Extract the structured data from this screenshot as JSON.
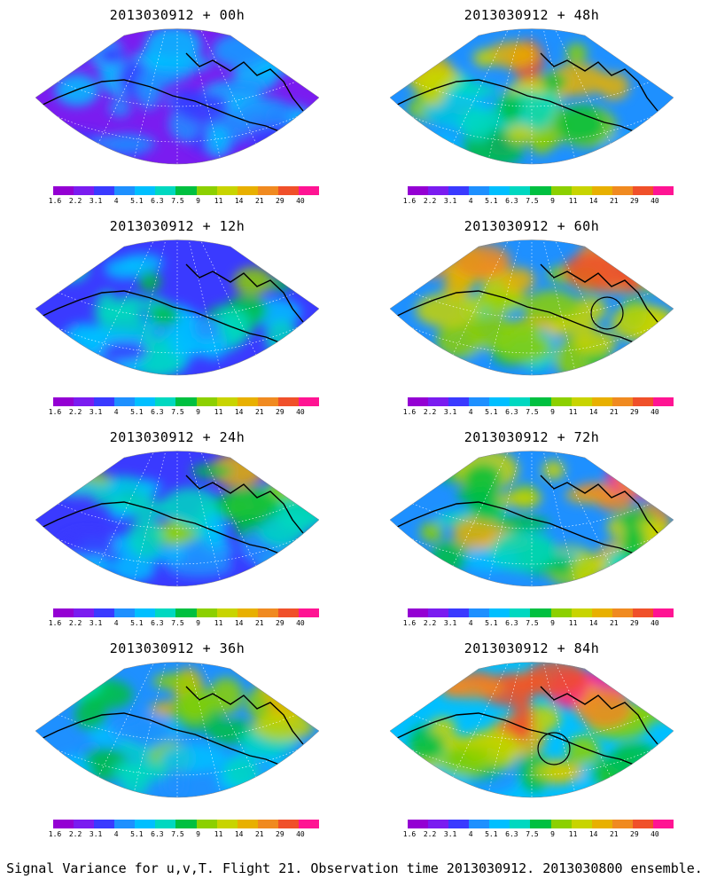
{
  "panels": [
    {
      "title": "2013030912 + 00h",
      "col": 0,
      "row": 0,
      "intensity": 0.35,
      "circle": null
    },
    {
      "title": "2013030912 + 48h",
      "col": 1,
      "row": 0,
      "intensity": 0.75,
      "circle": null
    },
    {
      "title": "2013030912 + 12h",
      "col": 0,
      "row": 1,
      "intensity": 0.5,
      "circle": null
    },
    {
      "title": "2013030912 + 60h",
      "col": 1,
      "row": 1,
      "intensity": 0.8,
      "circle": "right"
    },
    {
      "title": "2013030912 + 24h",
      "col": 0,
      "row": 2,
      "intensity": 0.6,
      "circle": null
    },
    {
      "title": "2013030912 + 72h",
      "col": 1,
      "row": 2,
      "intensity": 0.85,
      "circle": null
    },
    {
      "title": "2013030912 + 36h",
      "col": 0,
      "row": 3,
      "intensity": 0.65,
      "circle": null
    },
    {
      "title": "2013030912 + 84h",
      "col": 1,
      "row": 3,
      "intensity": 0.9,
      "circle": "center"
    }
  ],
  "colorbar": {
    "colors": [
      "#9400d3",
      "#7a1cf0",
      "#3a3aff",
      "#1e90ff",
      "#00bfff",
      "#00d8c0",
      "#00c040",
      "#8cd000",
      "#c8d400",
      "#e8b000",
      "#f08a20",
      "#f0502a",
      "#ff1493"
    ],
    "ticks": [
      "1.6",
      "2.2",
      "3.1",
      "4",
      "5.1",
      "6.3",
      "7.5",
      "9",
      "11",
      "14",
      "21",
      "29",
      "40"
    ]
  },
  "caption": "Signal Variance for u,v,T. Flight 21. Observation time 2013030912. 2013030800 ensemble."
}
